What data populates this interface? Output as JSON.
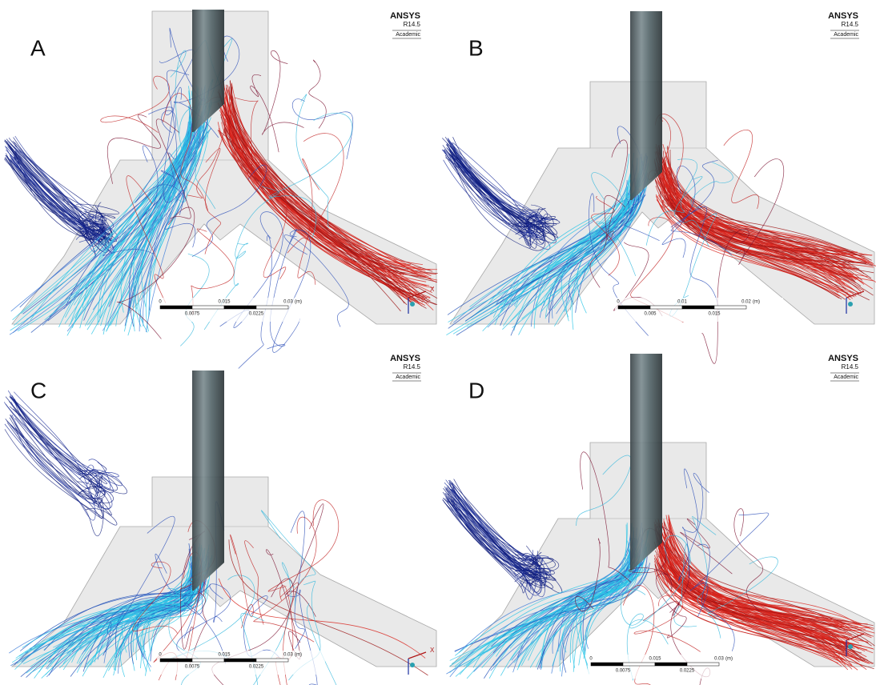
{
  "panels": [
    {
      "label": "A",
      "logo": {
        "brand": "ANSYS",
        "version": "R14.5",
        "license": "Academic"
      },
      "scale": {
        "top": [
          "0",
          "0.015",
          "0.03"
        ],
        "unit": "(m)",
        "bottom": [
          "0.0075",
          "0.0225"
        ]
      },
      "axis": "X"
    },
    {
      "label": "B",
      "logo": {
        "brand": "ANSYS",
        "version": "R14.5",
        "license": "Academic"
      },
      "scale": {
        "top": [
          "0",
          "0.01",
          "0.02"
        ],
        "unit": "(m)",
        "bottom": [
          "0.005",
          "0.015"
        ]
      }
    },
    {
      "label": "C",
      "logo": {
        "brand": "ANSYS",
        "version": "R14.5",
        "license": "Academic"
      },
      "scale": {
        "top": [
          "0",
          "0.015",
          "0.03"
        ],
        "unit": "(m)",
        "bottom": [
          "0.0075",
          "0.0225"
        ]
      },
      "axis": "X"
    },
    {
      "label": "D",
      "logo": {
        "brand": "ANSYS",
        "version": "R14.5",
        "license": "Academic"
      },
      "scale": {
        "top": [
          "0",
          "0.015",
          "0.03"
        ],
        "unit": "(m)",
        "bottom": [
          "0.0075",
          "0.0225"
        ]
      }
    }
  ]
}
